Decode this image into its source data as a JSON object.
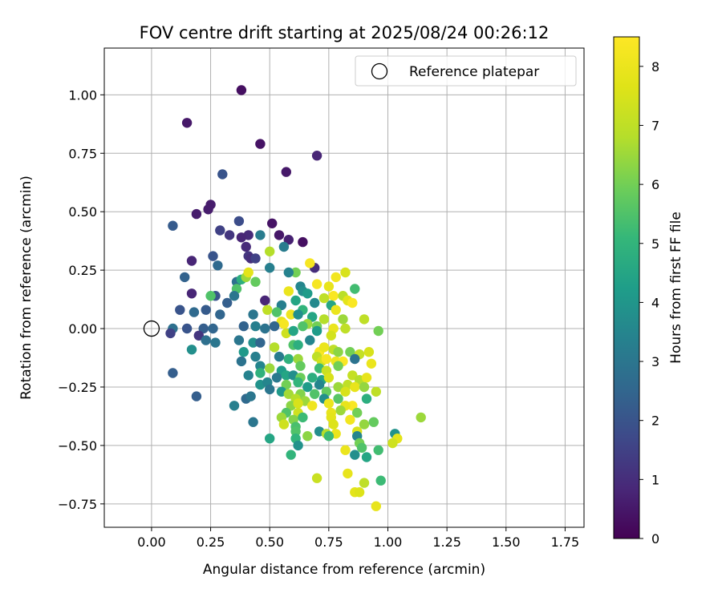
{
  "chart_data": {
    "type": "scatter",
    "title": "FOV centre drift starting at 2025/08/24 00:26:12",
    "xlabel": "Angular distance from reference (arcmin)",
    "ylabel": "Rotation from reference (arcmin)",
    "xlim": [
      -0.2,
      1.83
    ],
    "ylim": [
      -0.85,
      1.2
    ],
    "xticks": [
      0.0,
      0.25,
      0.5,
      0.75,
      1.0,
      1.25,
      1.5,
      1.75
    ],
    "xtick_labels": [
      "0.00",
      "0.25",
      "0.50",
      "0.75",
      "1.00",
      "1.25",
      "1.50",
      "1.75"
    ],
    "yticks": [
      -0.75,
      -0.5,
      -0.25,
      0.0,
      0.25,
      0.5,
      0.75,
      1.0
    ],
    "ytick_labels": [
      "−0.75",
      "−0.50",
      "−0.25",
      "0.00",
      "0.25",
      "0.50",
      "0.75",
      "1.00"
    ],
    "grid": true,
    "legend": {
      "placement": "top-right",
      "entries": [
        "Reference platepar"
      ]
    },
    "reference_point": {
      "name": "Reference platepar",
      "x": 0.0,
      "y": 0.0
    },
    "colorbar": {
      "label": "Hours from first FF file",
      "min": 0,
      "max": 8.5,
      "ticks": [
        0,
        1,
        2,
        3,
        4,
        5,
        6,
        7,
        8
      ],
      "tick_labels": [
        "0",
        "1",
        "2",
        "3",
        "4",
        "5",
        "6",
        "7",
        "8"
      ],
      "colormap": "viridis"
    },
    "points": [
      [
        0.38,
        1.02,
        0.3
      ],
      [
        0.15,
        0.88,
        0.5
      ],
      [
        0.46,
        0.79,
        0.4
      ],
      [
        0.7,
        0.74,
        0.8
      ],
      [
        0.57,
        0.67,
        0.5
      ],
      [
        0.3,
        0.66,
        2.0
      ],
      [
        0.25,
        0.53,
        0.6
      ],
      [
        0.24,
        0.51,
        0.6
      ],
      [
        0.19,
        0.49,
        0.6
      ],
      [
        0.09,
        0.44,
        2.2
      ],
      [
        0.37,
        0.46,
        1.8
      ],
      [
        0.51,
        0.45,
        0.4
      ],
      [
        0.29,
        0.42,
        1.5
      ],
      [
        0.33,
        0.4,
        1.2
      ],
      [
        0.54,
        0.4,
        0.5
      ],
      [
        0.41,
        0.4,
        0.9
      ],
      [
        0.38,
        0.39,
        0.8
      ],
      [
        0.58,
        0.38,
        0.7
      ],
      [
        0.46,
        0.4,
        3.2
      ],
      [
        0.64,
        0.37,
        0.3
      ],
      [
        0.4,
        0.35,
        0.9
      ],
      [
        0.56,
        0.35,
        3.2
      ],
      [
        0.5,
        0.33,
        6.8
      ],
      [
        0.41,
        0.31,
        1.2
      ],
      [
        0.42,
        0.3,
        1.0
      ],
      [
        0.44,
        0.3,
        1.5
      ],
      [
        0.26,
        0.31,
        2.0
      ],
      [
        0.17,
        0.29,
        0.8
      ],
      [
        0.28,
        0.27,
        2.6
      ],
      [
        0.5,
        0.26,
        3.3
      ],
      [
        0.69,
        0.26,
        1.0
      ],
      [
        0.67,
        0.28,
        8.3
      ],
      [
        0.61,
        0.24,
        6.0
      ],
      [
        0.82,
        0.24,
        7.5
      ],
      [
        0.58,
        0.24,
        3.4
      ],
      [
        0.14,
        0.22,
        2.4
      ],
      [
        0.36,
        0.2,
        2.8
      ],
      [
        0.38,
        0.21,
        4.8
      ],
      [
        0.44,
        0.2,
        5.8
      ],
      [
        0.4,
        0.22,
        6.5
      ],
      [
        0.41,
        0.24,
        7.8
      ],
      [
        0.7,
        0.19,
        8.3
      ],
      [
        0.78,
        0.22,
        8.2
      ],
      [
        0.75,
        0.18,
        7.9
      ],
      [
        0.86,
        0.17,
        5.3
      ],
      [
        0.36,
        0.17,
        5.5
      ],
      [
        0.63,
        0.18,
        3.5
      ],
      [
        0.64,
        0.16,
        3.8
      ],
      [
        0.66,
        0.15,
        4.2
      ],
      [
        0.77,
        0.14,
        8.4
      ],
      [
        0.81,
        0.14,
        6.9
      ],
      [
        0.58,
        0.16,
        8.0
      ],
      [
        0.73,
        0.13,
        7.0
      ],
      [
        0.83,
        0.12,
        7.8
      ],
      [
        0.85,
        0.11,
        8.4
      ],
      [
        0.17,
        0.15,
        0.8
      ],
      [
        0.27,
        0.14,
        2.0
      ],
      [
        0.25,
        0.14,
        5.5
      ],
      [
        0.35,
        0.14,
        3.0
      ],
      [
        0.32,
        0.11,
        2.3
      ],
      [
        0.48,
        0.12,
        0.8
      ],
      [
        0.55,
        0.1,
        3.3
      ],
      [
        0.61,
        0.12,
        4.5
      ],
      [
        0.69,
        0.11,
        3.6
      ],
      [
        0.76,
        0.1,
        4.5
      ],
      [
        0.64,
        0.08,
        5.0
      ],
      [
        0.78,
        0.08,
        8.0
      ],
      [
        0.12,
        0.08,
        2.0
      ],
      [
        0.18,
        0.07,
        2.6
      ],
      [
        0.23,
        0.08,
        2.2
      ],
      [
        0.29,
        0.06,
        2.5
      ],
      [
        0.43,
        0.06,
        3.0
      ],
      [
        0.49,
        0.08,
        7.0
      ],
      [
        0.53,
        0.07,
        5.5
      ],
      [
        0.59,
        0.06,
        8.1
      ],
      [
        0.62,
        0.06,
        3.8
      ],
      [
        0.68,
        0.05,
        4.5
      ],
      [
        0.73,
        0.04,
        6.8
      ],
      [
        0.81,
        0.04,
        6.5
      ],
      [
        0.9,
        0.04,
        7.0
      ],
      [
        0.55,
        0.03,
        7.9
      ],
      [
        0.56,
        0.02,
        8.3
      ],
      [
        0.66,
        0.02,
        6.5
      ],
      [
        0.7,
        0.01,
        6.0
      ],
      [
        0.77,
        0.0,
        8.0
      ],
      [
        0.82,
        0.0,
        7.0
      ],
      [
        0.96,
        -0.01,
        6.0
      ],
      [
        0.09,
        0.0,
        2.8
      ],
      [
        0.08,
        -0.02,
        1.5
      ],
      [
        0.15,
        0.0,
        2.0
      ],
      [
        0.22,
        0.0,
        2.3
      ],
      [
        0.26,
        0.0,
        2.5
      ],
      [
        0.39,
        0.01,
        2.4
      ],
      [
        0.44,
        0.01,
        3.3
      ],
      [
        0.48,
        0.0,
        2.9
      ],
      [
        0.52,
        0.01,
        2.5
      ],
      [
        0.57,
        -0.02,
        7.3
      ],
      [
        0.6,
        -0.01,
        4.5
      ],
      [
        0.64,
        0.01,
        5.5
      ],
      [
        0.7,
        -0.01,
        4.2
      ],
      [
        0.76,
        -0.03,
        7.4
      ],
      [
        0.2,
        -0.03,
        1.2
      ],
      [
        0.23,
        -0.05,
        2.8
      ],
      [
        0.27,
        -0.06,
        3.0
      ],
      [
        0.37,
        -0.05,
        3.0
      ],
      [
        0.43,
        -0.06,
        3.8
      ],
      [
        0.46,
        -0.06,
        2.5
      ],
      [
        0.52,
        -0.08,
        6.8
      ],
      [
        0.6,
        -0.07,
        5.5
      ],
      [
        0.62,
        -0.07,
        4.8
      ],
      [
        0.67,
        -0.05,
        3.5
      ],
      [
        0.71,
        -0.1,
        8.4
      ],
      [
        0.73,
        -0.08,
        8.0
      ],
      [
        0.77,
        -0.09,
        7.0
      ],
      [
        0.79,
        -0.1,
        6.3
      ],
      [
        0.84,
        -0.1,
        6.0
      ],
      [
        0.88,
        -0.11,
        7.1
      ],
      [
        0.92,
        -0.1,
        7.5
      ],
      [
        0.17,
        -0.09,
        3.8
      ],
      [
        0.39,
        -0.1,
        4.1
      ],
      [
        0.38,
        -0.14,
        2.9
      ],
      [
        0.44,
        -0.12,
        3.3
      ],
      [
        0.54,
        -0.12,
        3.2
      ],
      [
        0.58,
        -0.13,
        4.9
      ],
      [
        0.62,
        -0.13,
        6.5
      ],
      [
        0.7,
        -0.12,
        7.0
      ],
      [
        0.72,
        -0.14,
        7.4
      ],
      [
        0.74,
        -0.13,
        8.3
      ],
      [
        0.78,
        -0.14,
        8.0
      ],
      [
        0.81,
        -0.14,
        8.4
      ],
      [
        0.86,
        -0.13,
        2.9
      ],
      [
        0.93,
        -0.15,
        8.0
      ],
      [
        0.46,
        -0.16,
        3.5
      ],
      [
        0.5,
        -0.17,
        6.5
      ],
      [
        0.55,
        -0.18,
        4.2
      ],
      [
        0.63,
        -0.16,
        5.8
      ],
      [
        0.71,
        -0.17,
        5.2
      ],
      [
        0.74,
        -0.18,
        7.2
      ],
      [
        0.79,
        -0.16,
        6.0
      ],
      [
        0.09,
        -0.19,
        2.3
      ],
      [
        0.41,
        -0.2,
        3.4
      ],
      [
        0.46,
        -0.19,
        4.9
      ],
      [
        0.53,
        -0.21,
        3.1
      ],
      [
        0.57,
        -0.2,
        4.5
      ],
      [
        0.6,
        -0.2,
        3.8
      ],
      [
        0.63,
        -0.21,
        5.9
      ],
      [
        0.68,
        -0.21,
        4.8
      ],
      [
        0.72,
        -0.22,
        4.4
      ],
      [
        0.75,
        -0.21,
        7.5
      ],
      [
        0.85,
        -0.2,
        7.1
      ],
      [
        0.88,
        -0.22,
        6.8
      ],
      [
        0.91,
        -0.21,
        7.9
      ],
      [
        0.46,
        -0.24,
        3.9
      ],
      [
        0.49,
        -0.23,
        3.5
      ],
      [
        0.57,
        -0.24,
        6.0
      ],
      [
        0.62,
        -0.23,
        5.0
      ],
      [
        0.66,
        -0.25,
        4.2
      ],
      [
        0.71,
        -0.24,
        3.5
      ],
      [
        0.79,
        -0.25,
        6.5
      ],
      [
        0.83,
        -0.24,
        7.0
      ],
      [
        0.86,
        -0.25,
        7.9
      ],
      [
        0.9,
        -0.25,
        6.4
      ],
      [
        0.5,
        -0.26,
        3.0
      ],
      [
        0.55,
        -0.27,
        4.1
      ],
      [
        0.58,
        -0.28,
        6.6
      ],
      [
        0.63,
        -0.28,
        6.2
      ],
      [
        0.69,
        -0.28,
        5.5
      ],
      [
        0.74,
        -0.27,
        5.8
      ],
      [
        0.82,
        -0.27,
        7.5
      ],
      [
        0.95,
        -0.27,
        7.0
      ],
      [
        0.19,
        -0.29,
        2.3
      ],
      [
        0.4,
        -0.3,
        2.6
      ],
      [
        0.42,
        -0.29,
        3.0
      ],
      [
        0.61,
        -0.3,
        6.8
      ],
      [
        0.65,
        -0.31,
        6.5
      ],
      [
        0.73,
        -0.3,
        3.8
      ],
      [
        0.79,
        -0.3,
        5.6
      ],
      [
        0.91,
        -0.3,
        4.8
      ],
      [
        0.35,
        -0.33,
        3.3
      ],
      [
        0.59,
        -0.33,
        6.3
      ],
      [
        0.62,
        -0.32,
        7.5
      ],
      [
        0.68,
        -0.33,
        8.1
      ],
      [
        0.75,
        -0.32,
        8.0
      ],
      [
        0.85,
        -0.33,
        8.4
      ],
      [
        0.82,
        -0.33,
        7.9
      ],
      [
        0.57,
        -0.36,
        5.5
      ],
      [
        0.62,
        -0.36,
        7.3
      ],
      [
        0.76,
        -0.36,
        7.9
      ],
      [
        0.8,
        -0.35,
        6.5
      ],
      [
        0.87,
        -0.36,
        6.0
      ],
      [
        0.55,
        -0.38,
        6.5
      ],
      [
        0.6,
        -0.39,
        6.2
      ],
      [
        0.64,
        -0.38,
        5.2
      ],
      [
        0.76,
        -0.38,
        7.8
      ],
      [
        0.84,
        -0.39,
        8.2
      ],
      [
        0.43,
        -0.4,
        3.0
      ],
      [
        0.56,
        -0.41,
        7.3
      ],
      [
        0.61,
        -0.42,
        5.4
      ],
      [
        0.77,
        -0.41,
        7.6
      ],
      [
        0.9,
        -0.41,
        6.4
      ],
      [
        0.94,
        -0.4,
        5.8
      ],
      [
        1.14,
        -0.38,
        6.5
      ],
      [
        0.61,
        -0.44,
        5.5
      ],
      [
        0.71,
        -0.44,
        3.8
      ],
      [
        0.74,
        -0.45,
        6.8
      ],
      [
        0.78,
        -0.45,
        8.0
      ],
      [
        0.87,
        -0.44,
        7.5
      ],
      [
        1.03,
        -0.45,
        3.9
      ],
      [
        0.5,
        -0.47,
        4.5
      ],
      [
        0.61,
        -0.47,
        5.0
      ],
      [
        0.66,
        -0.46,
        6.3
      ],
      [
        0.75,
        -0.46,
        5.2
      ],
      [
        0.87,
        -0.46,
        3.5
      ],
      [
        0.88,
        -0.49,
        6.0
      ],
      [
        1.04,
        -0.47,
        7.8
      ],
      [
        1.02,
        -0.49,
        7.3
      ],
      [
        0.62,
        -0.5,
        3.9
      ],
      [
        0.89,
        -0.51,
        5.5
      ],
      [
        0.96,
        -0.52,
        5.3
      ],
      [
        0.82,
        -0.52,
        8.0
      ],
      [
        0.86,
        -0.54,
        3.8
      ],
      [
        0.59,
        -0.54,
        5.0
      ],
      [
        0.91,
        -0.55,
        4.5
      ],
      [
        0.83,
        -0.62,
        7.9
      ],
      [
        0.7,
        -0.64,
        7.2
      ],
      [
        0.9,
        -0.66,
        7.0
      ],
      [
        0.97,
        -0.65,
        5.2
      ],
      [
        0.86,
        -0.7,
        7.8
      ],
      [
        0.88,
        -0.7,
        7.6
      ],
      [
        0.95,
        -0.76,
        7.9
      ]
    ]
  }
}
